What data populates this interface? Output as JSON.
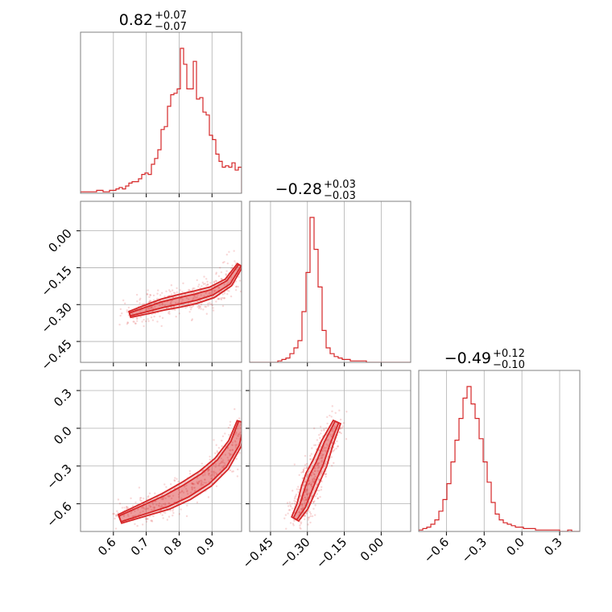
{
  "chart_data": {
    "type": "corner",
    "color": "#d62728",
    "parameters": [
      {
        "median": "0.82",
        "plus": "+0.07",
        "minus": "−0.07",
        "range": [
          0.5,
          0.99
        ]
      },
      {
        "median": "−0.28",
        "plus": "+0.03",
        "minus": "−0.03",
        "range": [
          -0.535,
          0.12
        ]
      },
      {
        "median": "−0.49",
        "plus": "+0.12",
        "minus": "−0.10",
        "range": [
          -0.82,
          0.46
        ]
      }
    ],
    "ticks": [
      {
        "values": [
          0.6,
          0.7,
          0.8,
          0.9
        ],
        "labels": [
          "0.6",
          "0.7",
          "0.8",
          "0.9"
        ]
      },
      {
        "values": [
          -0.45,
          -0.3,
          -0.15,
          0.0
        ],
        "labels": [
          "−0.45",
          "−0.30",
          "−0.15",
          "0.00"
        ]
      },
      {
        "values": [
          -0.6,
          -0.3,
          0.0,
          0.3
        ],
        "labels": [
          "−0.6",
          "−0.3",
          "0.0",
          "0.3"
        ]
      }
    ],
    "histograms": [
      {
        "values": [
          1,
          1,
          1,
          1,
          1,
          2,
          2,
          1,
          1,
          2,
          2,
          3,
          4,
          3,
          5,
          7,
          8,
          8,
          10,
          13,
          14,
          13,
          20,
          24,
          30,
          44,
          46,
          60,
          68,
          69,
          72,
          100,
          89,
          72,
          72,
          91,
          65,
          66,
          56,
          54,
          40,
          37,
          27,
          22,
          18,
          19,
          18,
          21,
          16,
          18
        ]
      },
      {
        "values": [
          0,
          0,
          0,
          0,
          0,
          0,
          0,
          1,
          2,
          3,
          6,
          10,
          15,
          35,
          62,
          100,
          78,
          52,
          22,
          10,
          6,
          4,
          3,
          2,
          2,
          1,
          1,
          1,
          1,
          0,
          0,
          0,
          0,
          0,
          0,
          0,
          0,
          0,
          0,
          0
        ]
      },
      {
        "values": [
          1,
          2,
          3,
          5,
          8,
          14,
          22,
          33,
          48,
          63,
          78,
          92,
          100,
          88,
          78,
          64,
          48,
          34,
          20,
          12,
          8,
          6,
          5,
          4,
          3,
          3,
          2,
          2,
          2,
          1,
          1,
          1,
          1,
          1,
          1,
          0,
          0,
          1,
          0,
          0
        ]
      }
    ],
    "pairs": [
      {
        "x": 0,
        "y": 1,
        "ridge": [
          [
            0.65,
            -0.34
          ],
          [
            0.7,
            -0.32
          ],
          [
            0.75,
            -0.3
          ],
          [
            0.8,
            -0.285
          ],
          [
            0.85,
            -0.27
          ],
          [
            0.9,
            -0.25
          ],
          [
            0.95,
            -0.21
          ],
          [
            0.985,
            -0.14
          ]
        ],
        "width": [
          0.02,
          0.04
        ]
      },
      {
        "x": 0,
        "y": 2,
        "ridge": [
          [
            0.62,
            -0.72
          ],
          [
            0.7,
            -0.64
          ],
          [
            0.76,
            -0.58
          ],
          [
            0.82,
            -0.5
          ],
          [
            0.88,
            -0.4
          ],
          [
            0.93,
            -0.28
          ],
          [
            0.97,
            -0.12
          ],
          [
            0.99,
            0.05
          ]
        ],
        "width": [
          0.04,
          0.06
        ]
      },
      {
        "x": 1,
        "y": 2,
        "ridge": [
          [
            -0.35,
            -0.72
          ],
          [
            -0.32,
            -0.62
          ],
          [
            -0.295,
            -0.48
          ],
          [
            -0.275,
            -0.38
          ],
          [
            -0.25,
            -0.28
          ],
          [
            -0.22,
            -0.12
          ],
          [
            -0.18,
            0.05
          ]
        ],
        "width": [
          0.025,
          0.05
        ]
      }
    ]
  }
}
